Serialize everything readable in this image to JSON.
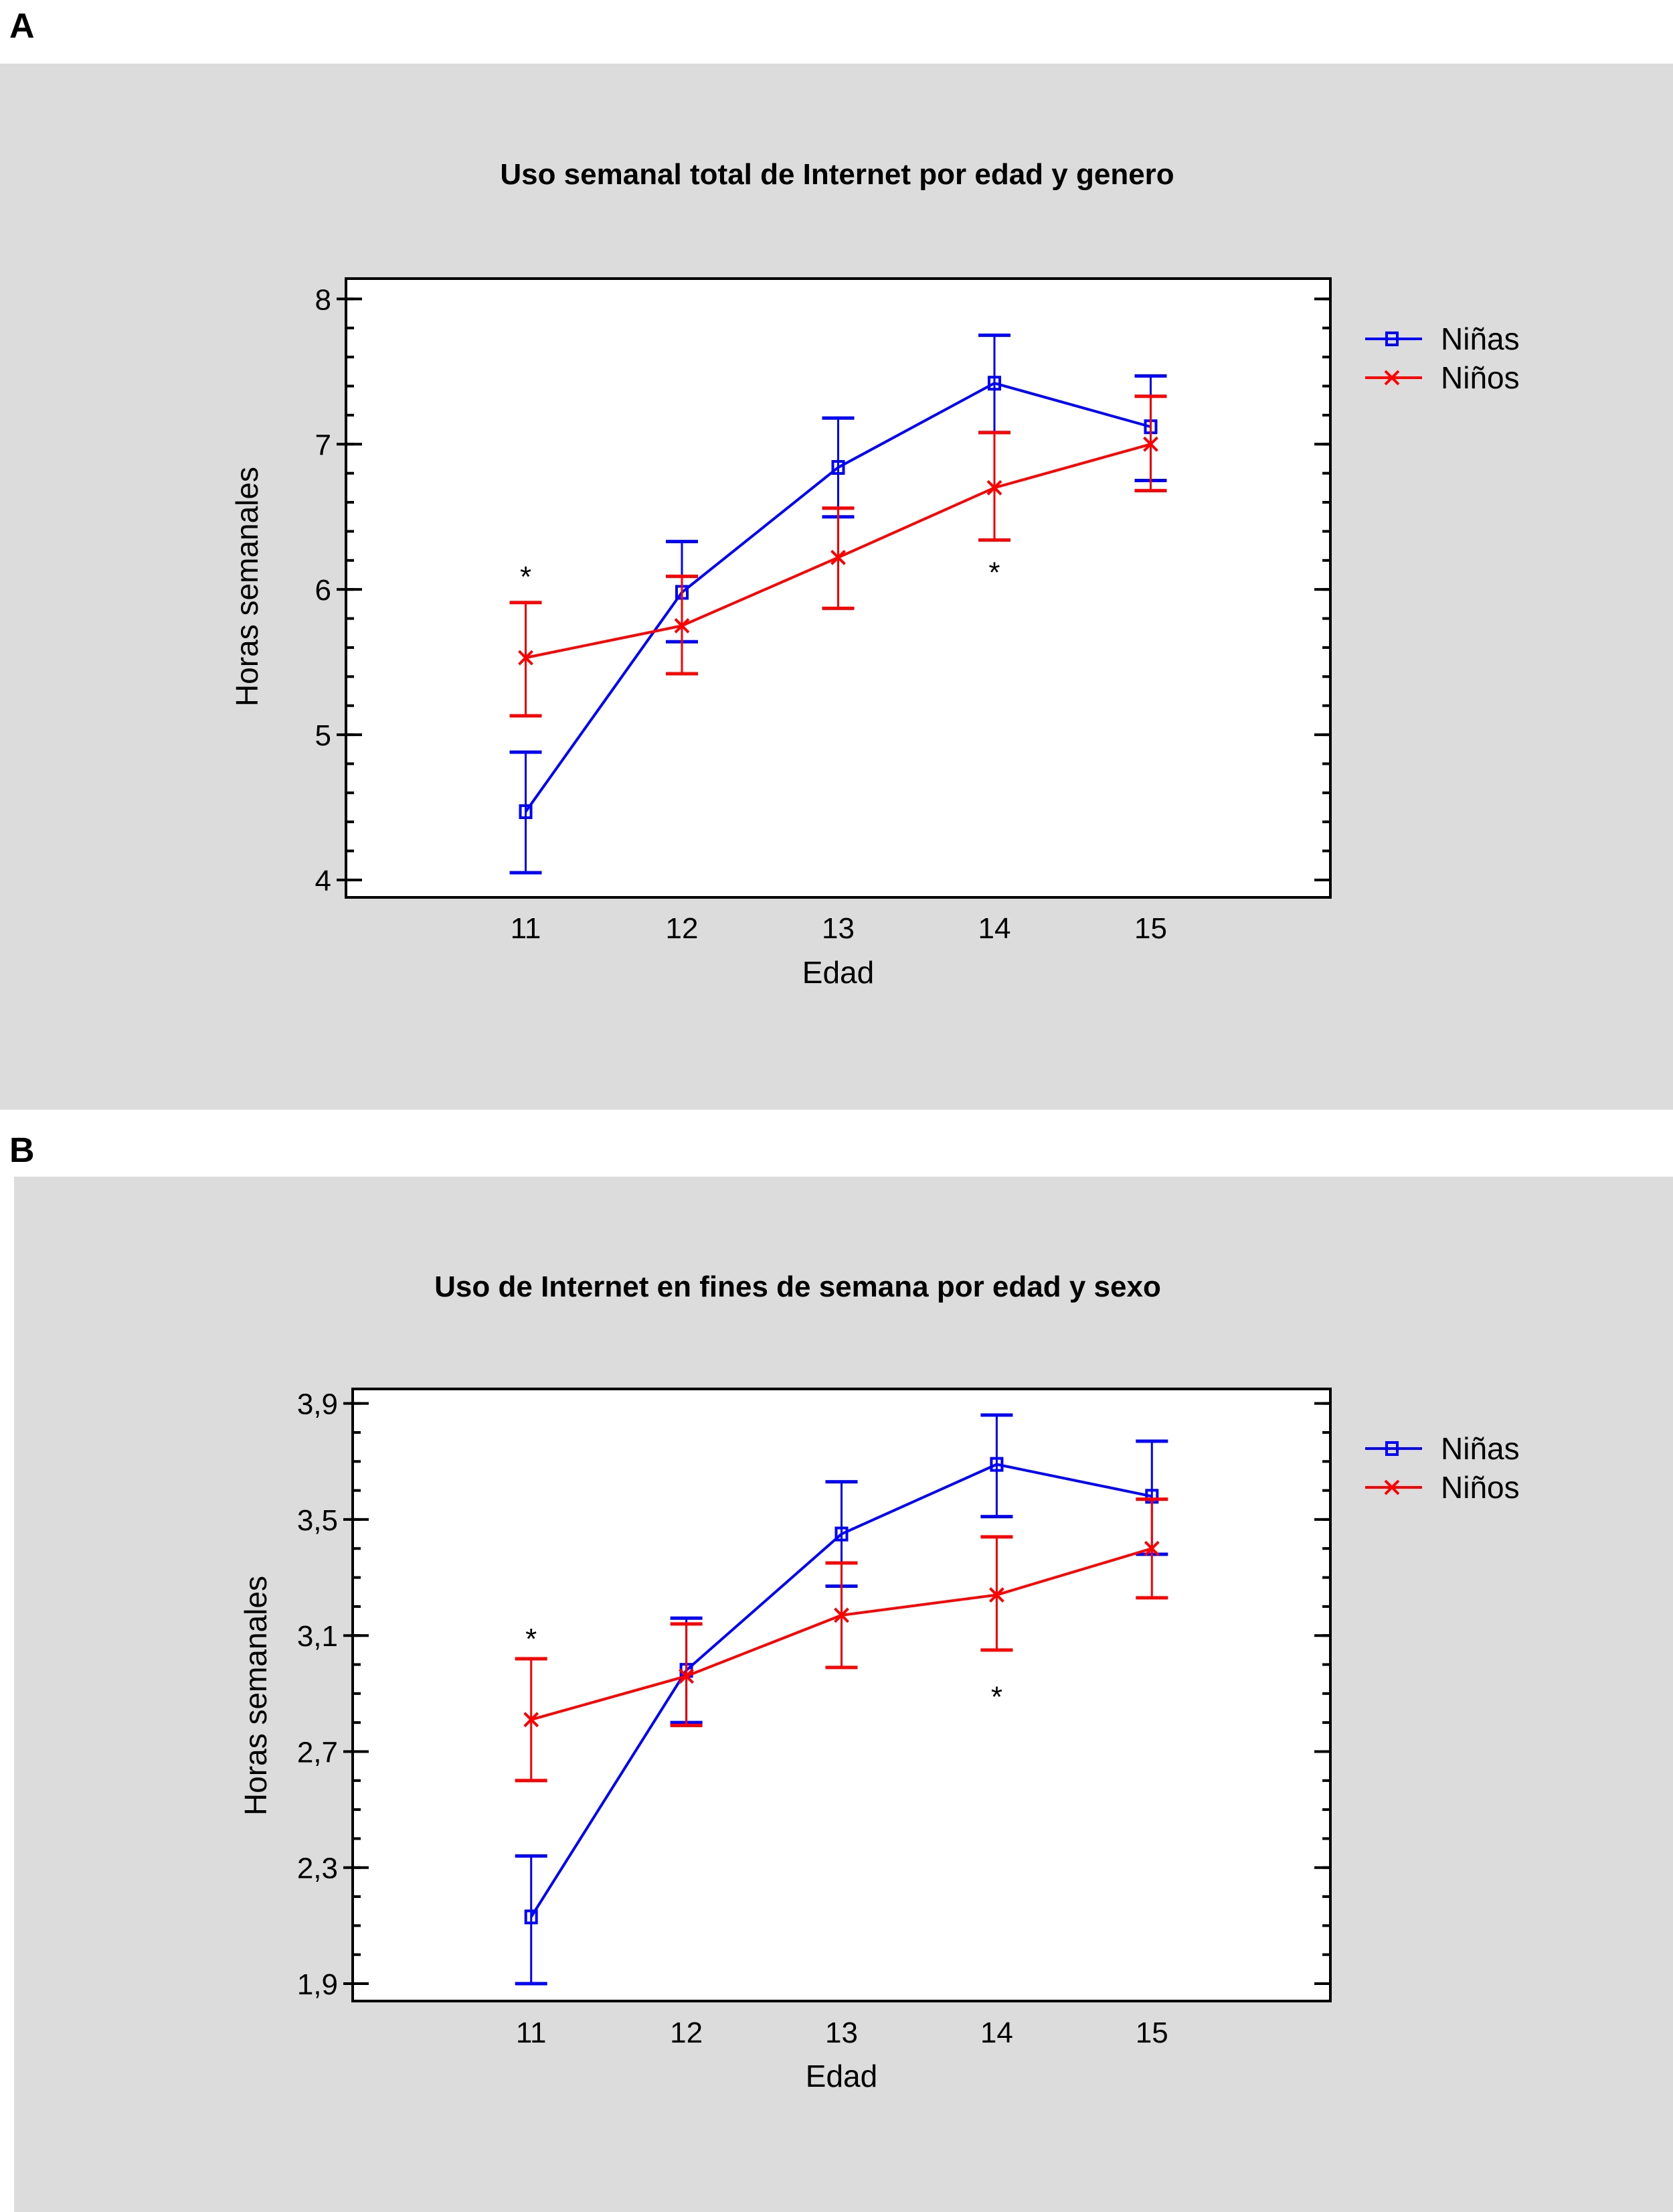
{
  "panel_labels": [
    "A",
    "B"
  ],
  "chart_data": [
    {
      "type": "line",
      "panel": "A",
      "title": "Uso semanal total de Internet por edad y genero",
      "xlabel": "Edad",
      "ylabel": "Horas semanales",
      "categories": [
        "11",
        "12",
        "13",
        "14",
        "15"
      ],
      "x": [
        11,
        12,
        13,
        14,
        15
      ],
      "xlim": [
        9.85,
        16.15
      ],
      "ylim": [
        3.88,
        8.14
      ],
      "yticks": [
        4,
        5,
        6,
        7,
        8
      ],
      "ytick_labels": [
        "4",
        "5",
        "6",
        "7",
        "8"
      ],
      "yminor_step": 0.2,
      "grid": false,
      "legend_position": "outside-top-right",
      "series": [
        {
          "name": "Niñas",
          "color": "#0000ff",
          "marker": "square",
          "values": [
            4.47,
            5.98,
            6.84,
            7.42,
            7.12
          ],
          "upper": [
            4.88,
            6.33,
            7.18,
            7.75,
            7.47
          ],
          "lower": [
            4.05,
            5.64,
            6.5,
            7.08,
            6.75
          ]
        },
        {
          "name": "Niños",
          "color": "#ff0000",
          "marker": "x",
          "values": [
            5.53,
            5.75,
            6.22,
            6.7,
            7.0
          ],
          "upper": [
            5.91,
            6.09,
            6.56,
            7.08,
            7.33
          ],
          "lower": [
            5.13,
            5.42,
            5.87,
            6.34,
            6.68
          ]
        }
      ],
      "annotations": [
        {
          "text": "*",
          "x": 11,
          "y": 6.13
        },
        {
          "text": "*",
          "x": 14,
          "y": 6.16
        }
      ]
    },
    {
      "type": "line",
      "panel": "B",
      "title": "Uso de Internet en fines de semana por edad y sexo",
      "xlabel": "Edad",
      "ylabel": "Horas semanales",
      "categories": [
        "11",
        "12",
        "13",
        "14",
        "15"
      ],
      "x": [
        11,
        12,
        13,
        14,
        15
      ],
      "xlim": [
        9.85,
        16.15
      ],
      "ylim": [
        1.84,
        3.95
      ],
      "yticks": [
        1.9,
        2.3,
        2.7,
        3.1,
        3.5,
        3.9
      ],
      "ytick_labels": [
        "1,9",
        "2,3",
        "2,7",
        "3,1",
        "3,5",
        "3,9"
      ],
      "yminor_step": 0.1,
      "grid": false,
      "legend_position": "outside-top-right",
      "series": [
        {
          "name": "Niñas",
          "color": "#0000ff",
          "marker": "square",
          "values": [
            2.13,
            2.98,
            3.45,
            3.69,
            3.58
          ],
          "upper": [
            2.34,
            3.16,
            3.63,
            3.86,
            3.77
          ],
          "lower": [
            1.9,
            2.8,
            3.27,
            3.51,
            3.38
          ]
        },
        {
          "name": "Niños",
          "color": "#ff0000",
          "marker": "x",
          "values": [
            2.81,
            2.96,
            3.17,
            3.24,
            3.4
          ],
          "upper": [
            3.02,
            3.14,
            3.35,
            3.44,
            3.57
          ],
          "lower": [
            2.6,
            2.79,
            2.99,
            3.05,
            3.23
          ]
        }
      ],
      "annotations": [
        {
          "text": "*",
          "x": 11,
          "y": 3.11
        },
        {
          "text": "*",
          "x": 14,
          "y": 2.91
        }
      ]
    }
  ]
}
